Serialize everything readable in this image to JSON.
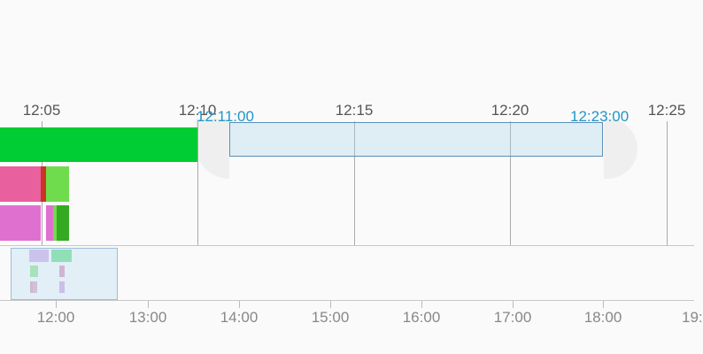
{
  "timeline": {
    "main_ticks": [
      "12:05",
      "12:10",
      "12:15",
      "12:20",
      "12:25"
    ],
    "selection": {
      "start_label": "12:11:00",
      "end_label": "12:23:00"
    },
    "colors": {
      "green": "#00cc33",
      "pink": "#e8609e",
      "red": "#cc3322",
      "light_green": "#6fdc4e",
      "violet": "#e070d0",
      "dark_green": "#33aa22",
      "selection_border": "#5a8fb8",
      "selection_label": "#2196c8"
    }
  },
  "overview": {
    "ticks": [
      "12:00",
      "13:00",
      "14:00",
      "15:00",
      "16:00",
      "17:00",
      "18:00",
      "19:"
    ]
  }
}
